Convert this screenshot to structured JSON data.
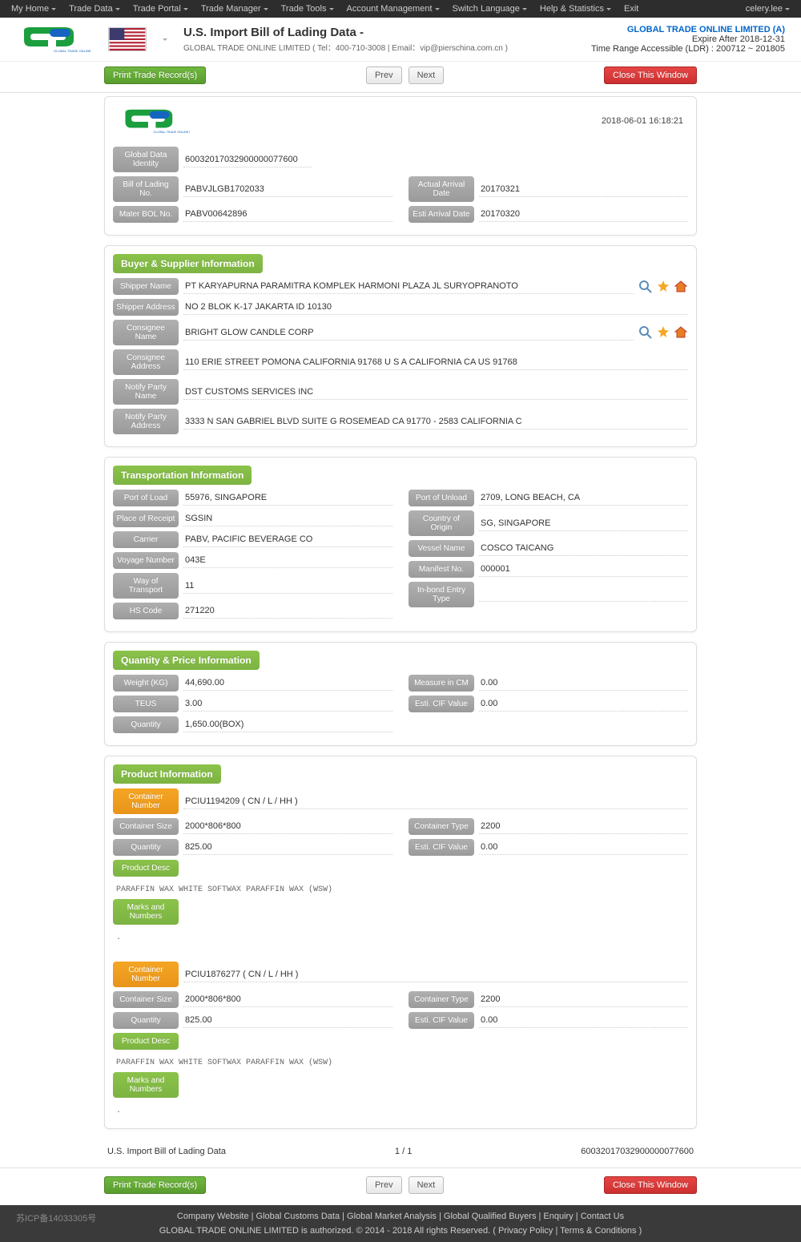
{
  "nav": {
    "items": [
      "My Home",
      "Trade Data",
      "Trade Portal",
      "Trade Manager",
      "Trade Tools",
      "Account Management",
      "Switch Language",
      "Help & Statistics",
      "Exit"
    ],
    "user": "celery.lee"
  },
  "header": {
    "title": "U.S. Import Bill of Lading Data  -",
    "sub": "GLOBAL TRADE ONLINE LIMITED ( Tel：400-710-3008  | Email：vip@pierschina.com.cn )",
    "company": "GLOBAL TRADE ONLINE LIMITED (A)",
    "expire": "Expire After 2018-12-31",
    "range": "Time Range Accessible (LDR) : 200712 ~ 201805",
    "logo_text": "GLOBAL TRADE ONLINE LIMITED"
  },
  "buttons": {
    "print": "Print Trade Record(s)",
    "prev": "Prev",
    "next": "Next",
    "close": "Close This Window"
  },
  "timestamp": "2018-06-01 16:18:21",
  "identity": {
    "gdi_lbl": "Global Data Identity",
    "gdi": "60032017032900000077600",
    "bol_lbl": "Bill of Lading No.",
    "bol": "PABVJLGB1702033",
    "mbol_lbl": "Mater BOL No.",
    "mbol": "PABV00642896",
    "aad_lbl": "Actual Arrival Date",
    "aad": "20170321",
    "ead_lbl": "Esti Arrival Date",
    "ead": "20170320"
  },
  "buyer": {
    "title": "Buyer & Supplier Information",
    "shipper_name_lbl": "Shipper Name",
    "shipper_name": "PT KARYAPURNA PARAMITRA KOMPLEK HARMONI PLAZA JL SURYOPRANOTO",
    "shipper_addr_lbl": "Shipper Address",
    "shipper_addr": "NO 2 BLOK K-17 JAKARTA ID 10130",
    "consignee_name_lbl": "Consignee Name",
    "consignee_name": "BRIGHT GLOW CANDLE CORP",
    "consignee_addr_lbl": "Consignee Address",
    "consignee_addr": "110 ERIE STREET POMONA CALIFORNIA 91768 U S A CALIFORNIA CA US 91768",
    "notify_name_lbl": "Notify Party Name",
    "notify_name": "DST CUSTOMS SERVICES INC",
    "notify_addr_lbl": "Notify Party Address",
    "notify_addr": "3333 N SAN GABRIEL BLVD SUITE G ROSEMEAD CA 91770 - 2583 CALIFORNIA C"
  },
  "trans": {
    "title": "Transportation Information",
    "pol_lbl": "Port of Load",
    "pol": "55976, SINGAPORE",
    "pou_lbl": "Port of Unload",
    "pou": "2709, LONG BEACH, CA",
    "por_lbl": "Place of Receipt",
    "por": "SGSIN",
    "coo_lbl": "Country of Origin",
    "coo": "SG, SINGAPORE",
    "carrier_lbl": "Carrier",
    "carrier": "PABV, PACIFIC BEVERAGE CO",
    "vessel_lbl": "Vessel Name",
    "vessel": "COSCO TAICANG",
    "voy_lbl": "Voyage Number",
    "voy": "043E",
    "man_lbl": "Manifest No.",
    "man": "000001",
    "way_lbl": "Way of Transport",
    "way": "11",
    "inb_lbl": "In-bond Entry Type",
    "inb": "",
    "hs_lbl": "HS Code",
    "hs": "271220"
  },
  "qty": {
    "title": "Quantity & Price Information",
    "weight_lbl": "Weight (KG)",
    "weight": "44,690.00",
    "mcm_lbl": "Measure in CM",
    "mcm": "0.00",
    "teus_lbl": "TEUS",
    "teus": "3.00",
    "cif_lbl": "Esti. CIF Value",
    "cif": "0.00",
    "q_lbl": "Quantity",
    "q": "1,650.00(BOX)"
  },
  "product": {
    "title": "Product Information",
    "cnum_lbl": "Container Number",
    "csize_lbl": "Container Size",
    "ctype_lbl": "Container Type",
    "qty_lbl": "Quantity",
    "cif_lbl": "Esti. CIF Value",
    "pdesc_lbl": "Product Desc",
    "marks_lbl": "Marks and Numbers",
    "containers": [
      {
        "num": "PCIU1194209 ( CN / L / HH )",
        "size": "2000*806*800",
        "type": "2200",
        "qty": "825.00",
        "cif": "0.00",
        "desc": "PARAFFIN WAX WHITE SOFTWAX PARAFFIN WAX (WSW)",
        "marks": "."
      },
      {
        "num": "PCIU1876277 ( CN / L / HH )",
        "size": "2000*806*800",
        "type": "2200",
        "qty": "825.00",
        "cif": "0.00",
        "desc": "PARAFFIN WAX WHITE SOFTWAX PARAFFIN WAX (WSW)",
        "marks": "."
      }
    ]
  },
  "footer_rec": {
    "title": "U.S. Import Bill of Lading Data",
    "page": "1 / 1",
    "id": "60032017032900000077600"
  },
  "footer": {
    "links": "Company Website  |  Global Customs Data  |  Global Market Analysis  |  Global Qualified Buyers  |  Enquiry  |  Contact Us",
    "copy": "GLOBAL TRADE ONLINE LIMITED is authorized. © 2014 - 2018 All rights Reserved.   (  Privacy Policy  |  Terms & Conditions   )",
    "icp": "苏ICP备14033305号"
  },
  "colors": {
    "green": "#7cb342",
    "orange": "#f5a623",
    "graylbl": "#9e9e9e",
    "red": "#d9534f"
  }
}
